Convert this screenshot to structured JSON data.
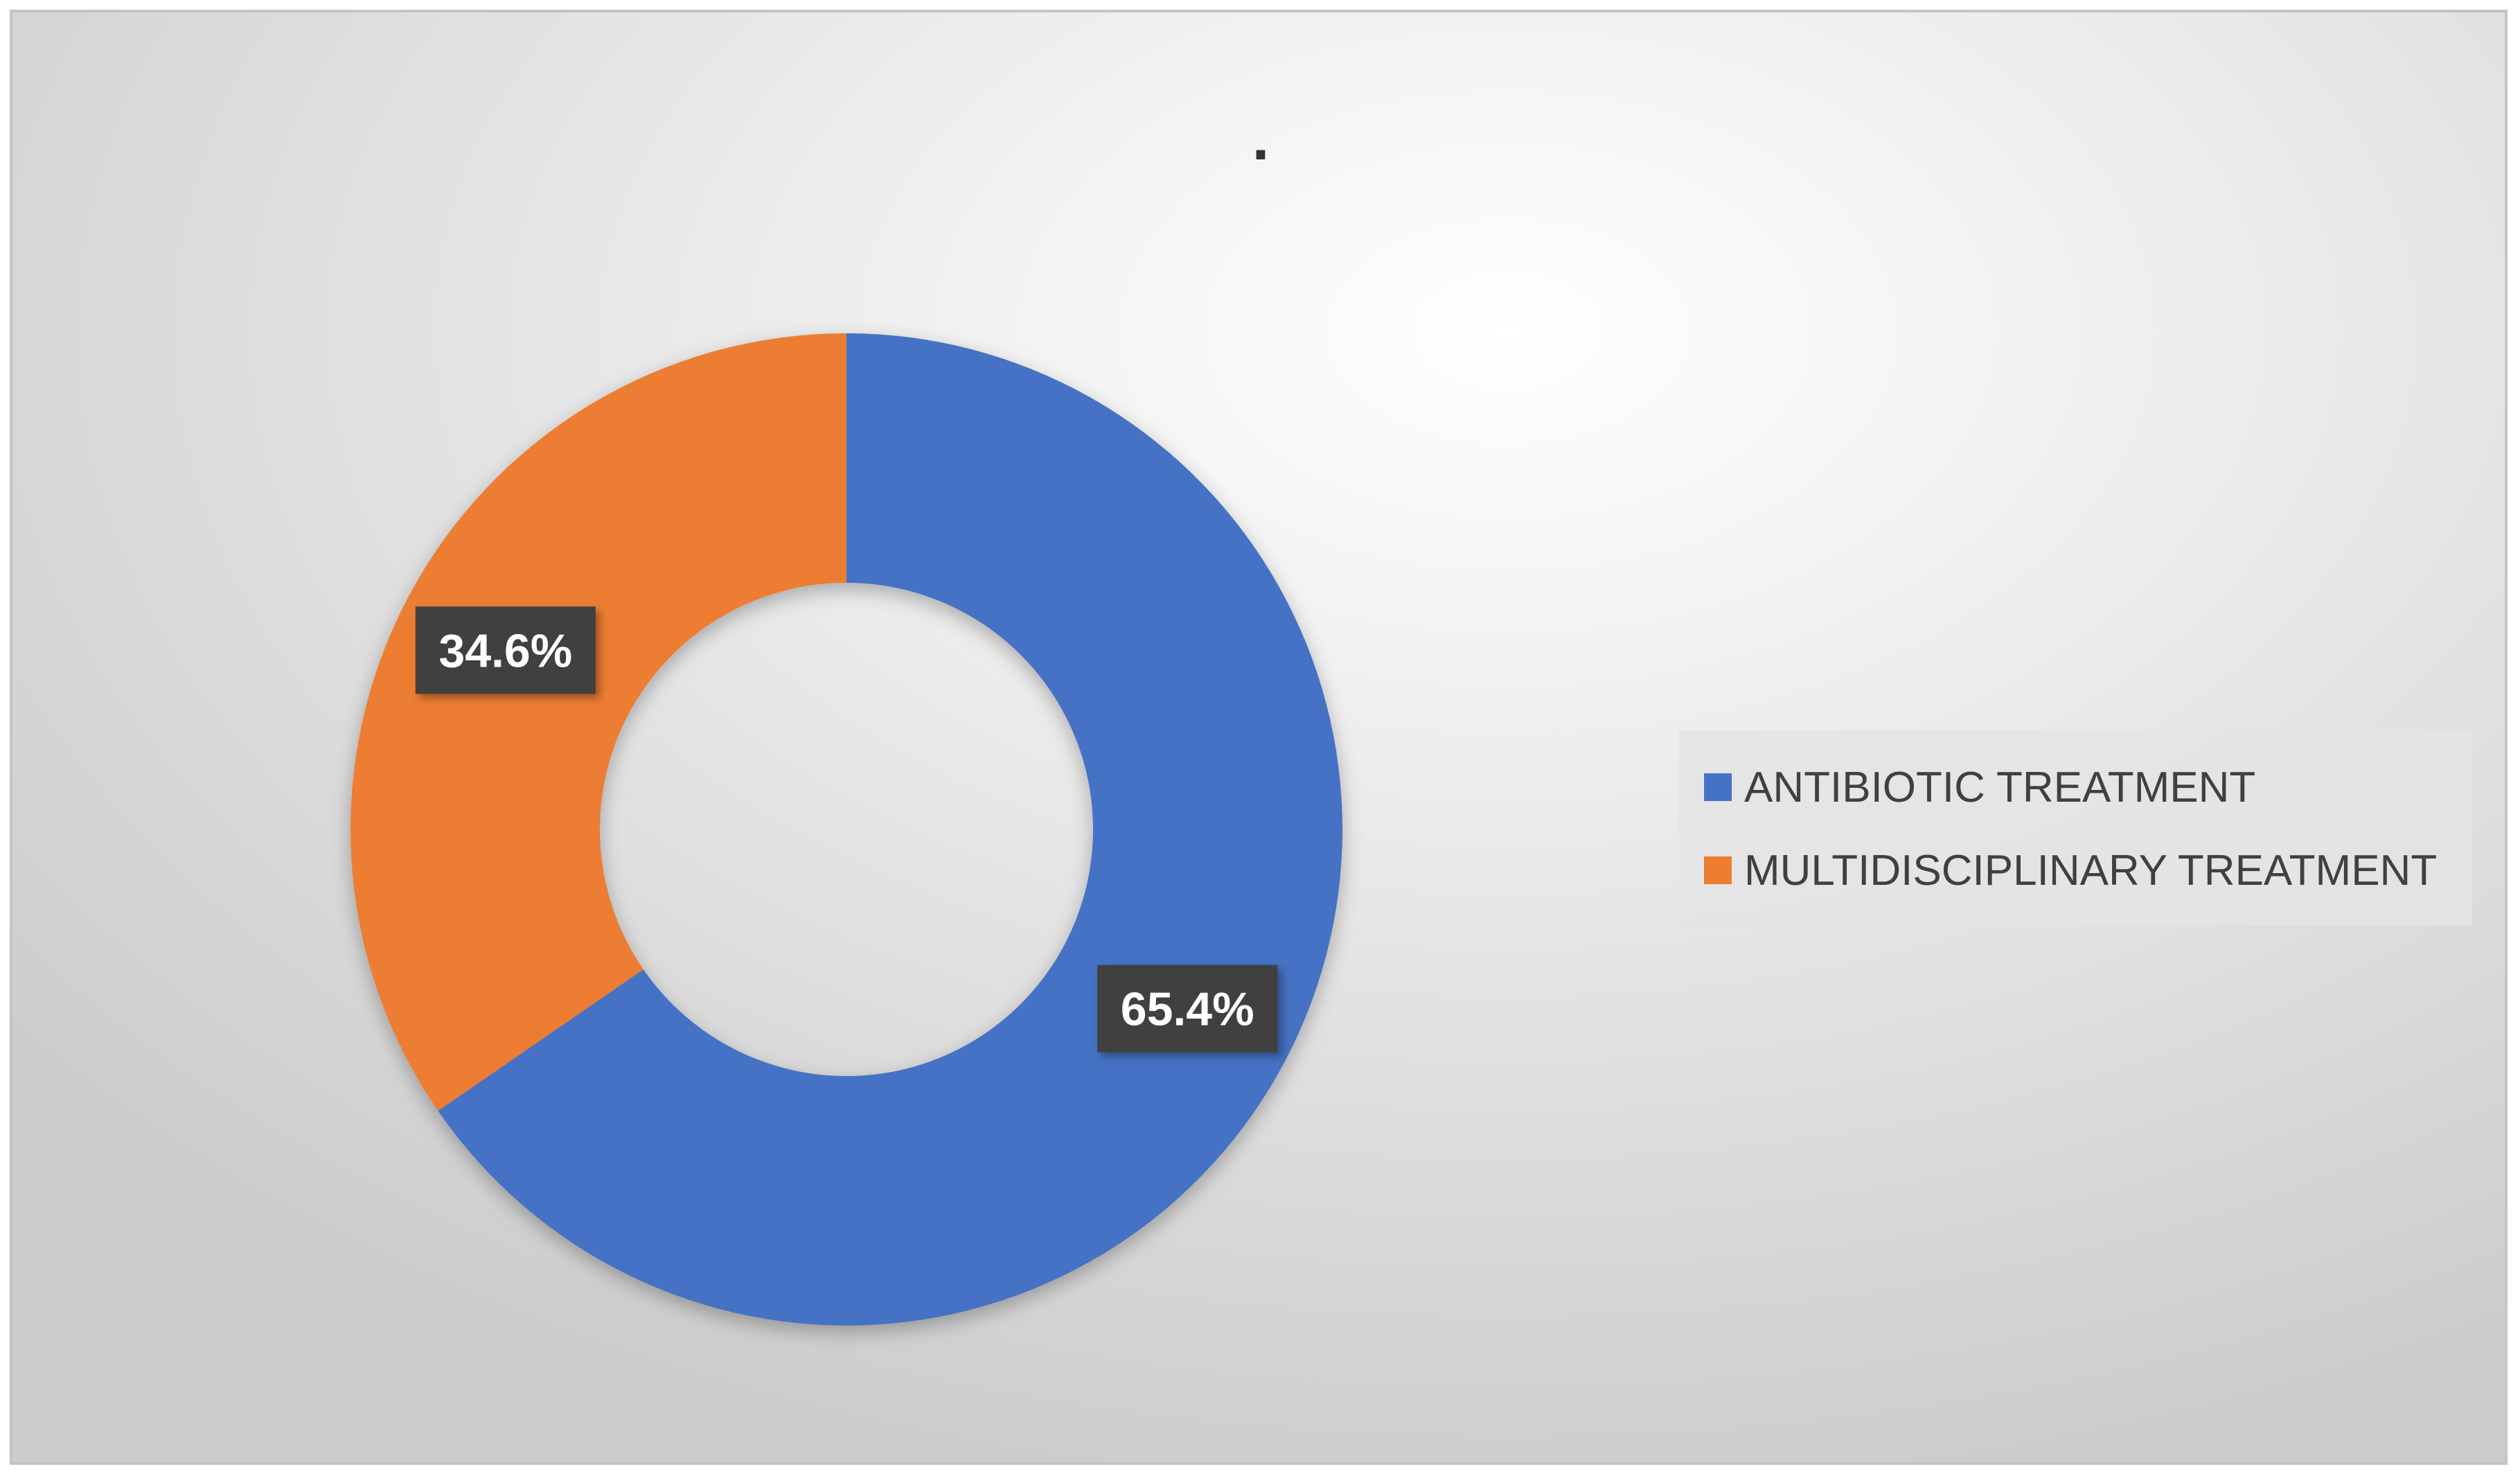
{
  "chart_data": {
    "type": "pie",
    "variant": "doughnut",
    "title": ".",
    "categories": [
      "ANTIBIOTIC TREATMENT",
      "MULTIDISCIPLINARY TREATMENT"
    ],
    "values": [
      65.4,
      34.6
    ],
    "data_labels": [
      "65.4%",
      "34.6%"
    ],
    "colors": [
      "#4472C4",
      "#ED7D31"
    ],
    "label_box_color": "#404040",
    "label_text_color": "#FFFFFF",
    "legend_position": "right",
    "legend": [
      {
        "label": "ANTIBIOTIC TREATMENT",
        "color": "#4472C4"
      },
      {
        "label": "MULTIDISCIPLINARY TREATMENT",
        "color": "#ED7D31"
      }
    ]
  }
}
